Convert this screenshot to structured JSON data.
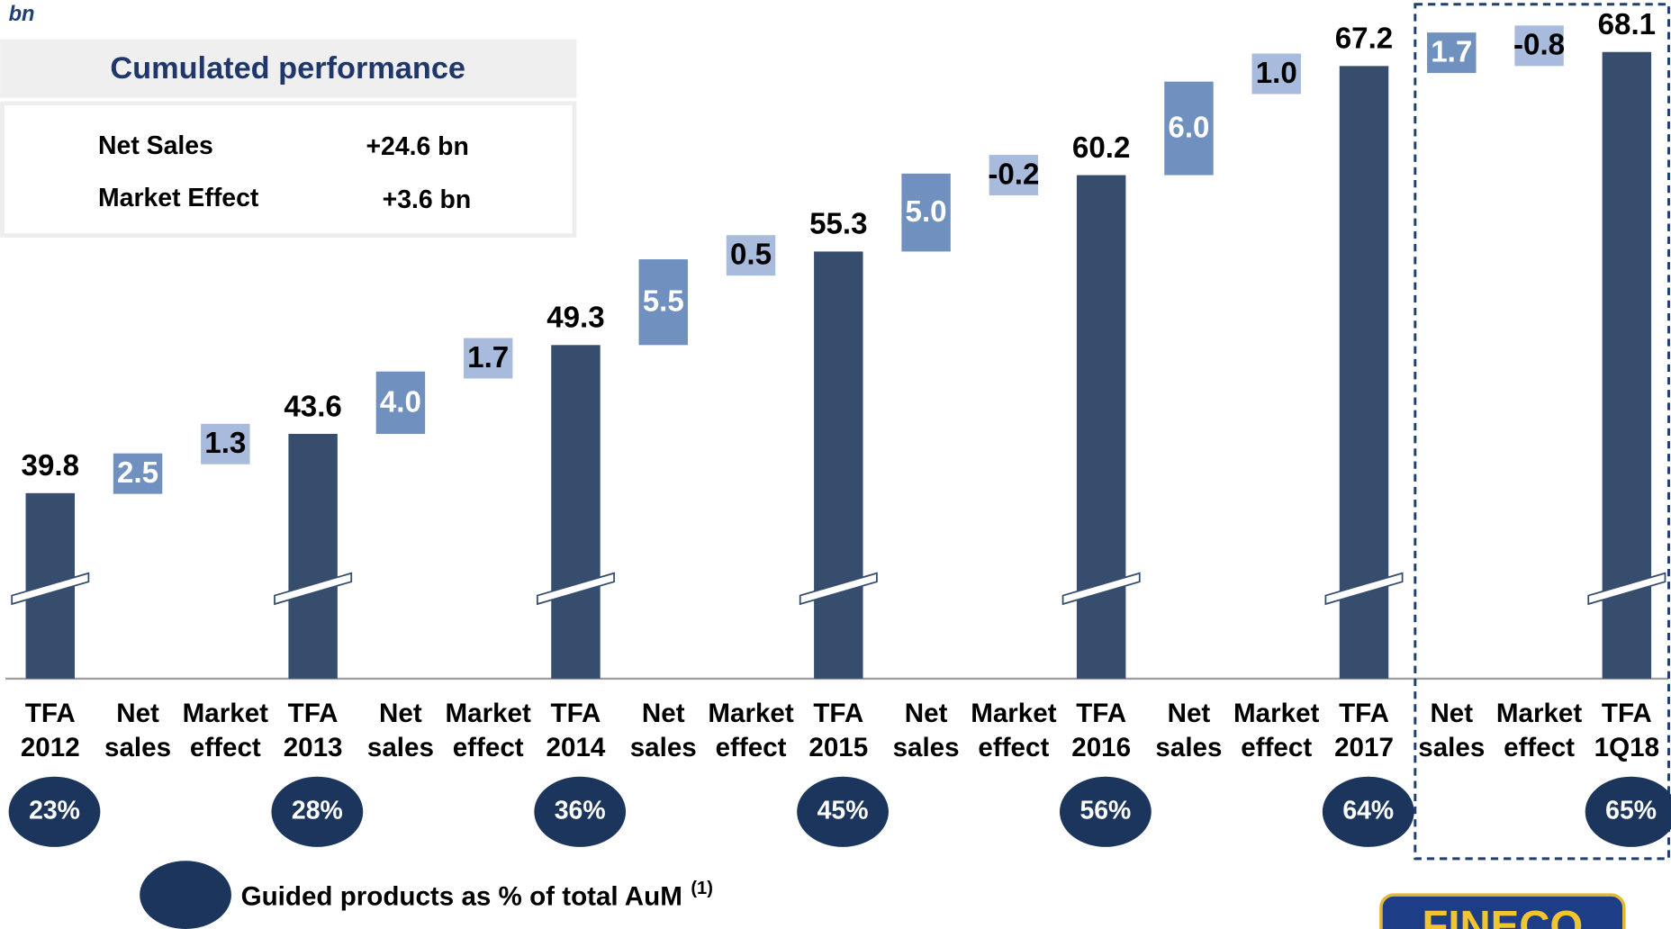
{
  "unit_label": "bn",
  "summary": {
    "title": "Cumulated performance",
    "rows": [
      [
        "Net Sales",
        "+24.6 bn"
      ],
      [
        "Market Effect",
        "+3.6 bn"
      ]
    ]
  },
  "logo": "FINECO",
  "chart_data": {
    "type": "waterfall",
    "categories": [
      [
        "TFA",
        "2012"
      ],
      [
        "Net",
        "sales"
      ],
      [
        "Market",
        "effect"
      ],
      [
        "TFA",
        "2013"
      ],
      [
        "Net",
        "sales"
      ],
      [
        "Market",
        "effect"
      ],
      [
        "TFA",
        "2014"
      ],
      [
        "Net",
        "sales"
      ],
      [
        "Market",
        "effect"
      ],
      [
        "TFA",
        "2015"
      ],
      [
        "Net",
        "sales"
      ],
      [
        "Market",
        "effect"
      ],
      [
        "TFA",
        "2016"
      ],
      [
        "Net",
        "sales"
      ],
      [
        "Market",
        "effect"
      ],
      [
        "TFA",
        "2017"
      ],
      [
        "Net",
        "sales"
      ],
      [
        "Market",
        "effect"
      ],
      [
        "TFA",
        "1Q18"
      ]
    ],
    "values": [
      39.8,
      2.5,
      1.3,
      43.6,
      4.0,
      1.7,
      49.3,
      5.5,
      0.5,
      55.3,
      5.0,
      -0.2,
      60.2,
      6.0,
      1.0,
      67.2,
      1.7,
      -0.8,
      68.1
    ],
    "value_labels": [
      "39.8",
      "2.5",
      "1.3",
      "43.6",
      "4.0",
      "1.7",
      "49.3",
      "5.5",
      "0.5",
      "55.3",
      "5.0",
      "-0.2",
      "60.2",
      "6.0",
      "1.0",
      "67.2",
      "1.7",
      "-0.8",
      "68.1"
    ],
    "is_total": [
      true,
      false,
      false,
      true,
      false,
      false,
      true,
      false,
      false,
      true,
      false,
      false,
      true,
      false,
      false,
      true,
      false,
      false,
      true
    ],
    "colors": [
      "#364d6e",
      "#7090c0",
      "#a9bbdc",
      "#364d6e",
      "#7090c0",
      "#a9bbdc",
      "#364d6e",
      "#7090c0",
      "#a9bbdc",
      "#364d6e",
      "#7090c0",
      "#a9bbdc",
      "#364d6e",
      "#7090c0",
      "#a9bbdc",
      "#364d6e",
      "#7090c0",
      "#a9bbdc",
      "#364d6e"
    ],
    "label_colors": [
      "#000000",
      "#ffffff",
      "#000000",
      "#000000",
      "#ffffff",
      "#000000",
      "#000000",
      "#ffffff",
      "#000000",
      "#000000",
      "#ffffff",
      "#000000",
      "#000000",
      "#ffffff",
      "#000000",
      "#000000",
      "#ffffff",
      "#000000",
      "#000000"
    ],
    "ylim": [
      27.9,
      70
    ],
    "guided": {
      "name": "Guided products as % of total AuM",
      "footnote": "(1)",
      "color": "#1b355c",
      "values": [
        23,
        null,
        null,
        28,
        null,
        null,
        36,
        null,
        null,
        45,
        null,
        null,
        56,
        null,
        null,
        64,
        null,
        null,
        65
      ],
      "value_labels": [
        "23%",
        null,
        null,
        "28%",
        null,
        null,
        "36%",
        null,
        null,
        "45%",
        null,
        null,
        "56%",
        null,
        null,
        "64%",
        null,
        null,
        "65%"
      ]
    }
  }
}
